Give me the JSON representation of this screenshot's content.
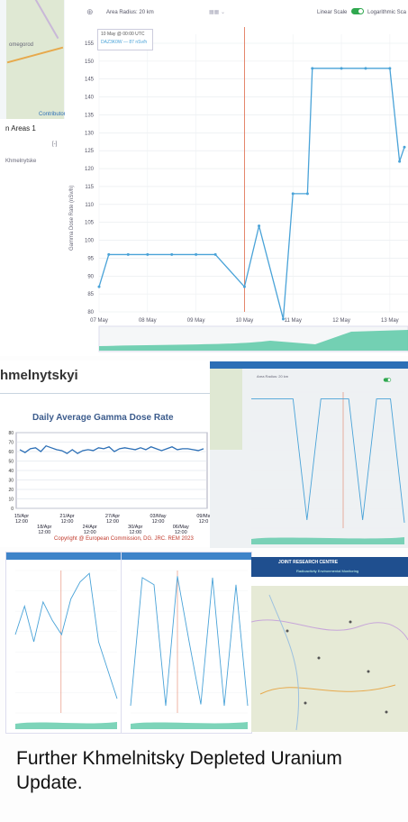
{
  "main": {
    "toolbar": {
      "area_radius": "Area Radius: 20 km",
      "linear_scale": "Linear Scale",
      "logarithmic": "Logarithmic Sca"
    },
    "left": {
      "areas_label": "n Areas 1",
      "place": "Khmelnytske",
      "map_label": "omegorod",
      "map_contrib": "Contributor"
    },
    "tooltip": {
      "date": "10 May @ 00:00 UTC",
      "series": "DAZ3K0W",
      "value": "87 nSv/h"
    },
    "y_axis_label": "Gamma Dose Rate (nSv/h)"
  },
  "chart_data": [
    {
      "type": "line",
      "ylabel": "Gamma Dose Rate (nSv/h)",
      "ylim": [
        80,
        155
      ],
      "yticks": [
        80,
        85,
        90,
        95,
        100,
        105,
        110,
        115,
        120,
        125,
        130,
        135,
        140,
        145,
        150,
        155
      ],
      "xticks": [
        "07 May",
        "08 May",
        "09 May",
        "10 May",
        "11 May",
        "12 May",
        "13 May"
      ],
      "x": [
        7.0,
        7.2,
        7.6,
        8.0,
        8.5,
        9.0,
        9.4,
        10.0,
        10.3,
        10.8,
        11.0,
        11.3,
        11.4,
        12.0,
        12.5,
        13.0,
        13.2,
        13.3
      ],
      "y": [
        87,
        96,
        96,
        96,
        96,
        96,
        96,
        87,
        104,
        78,
        113,
        113,
        148,
        148,
        148,
        148,
        122,
        126
      ],
      "marker_date": "10 May"
    },
    {
      "type": "line",
      "title": "Daily Average Gamma Dose Rate",
      "xticks": [
        "15/Apr 12:00",
        "18/Apr 12:00",
        "21/Apr 12:00",
        "24/Apr 12:00",
        "27/Apr 12:00",
        "30/Apr 12:00",
        "03/May 12:00",
        "06/May 12:00",
        "09/Ma 12:0"
      ],
      "yticks": [
        "80",
        "70",
        "60",
        "50",
        "40",
        "30",
        "20",
        "10",
        "0"
      ],
      "values": [
        62,
        59,
        63,
        64,
        60,
        66,
        64,
        62,
        61,
        58,
        62,
        58,
        61,
        62,
        61,
        64,
        63,
        65,
        60,
        63,
        64,
        63,
        62,
        64,
        62,
        65,
        63,
        61,
        63,
        65,
        62,
        63,
        63,
        62,
        61,
        63
      ]
    }
  ],
  "daily": {
    "header": "hmelnytskyi",
    "title": "Daily Average Gamma Dose Rate",
    "copyright": "Copyright @ European Commission, DG. JRC. REM 2023"
  },
  "shot2": {
    "header": "Area Radius: 20 km"
  },
  "shot5": {
    "org": "JOINT RESEARCH CENTRE",
    "sub": "Radioactivity Environmental Monitoring"
  },
  "caption": "Further Khmelnitsky Depleted Uranium Update.",
  "colors": {
    "line": "#4aa3d8",
    "accent": "#2c6fb6",
    "marker": "#e06a4a",
    "fill": "#5cc9a7"
  }
}
